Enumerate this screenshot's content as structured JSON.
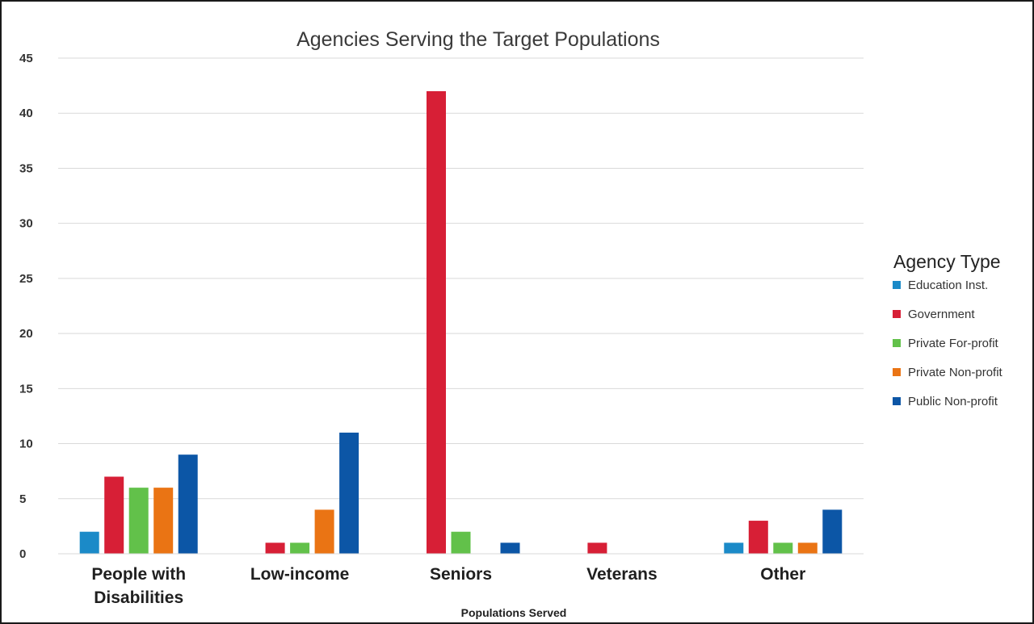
{
  "chart_data": {
    "type": "bar",
    "title": "Agencies Serving the Target Populations",
    "xlabel": "Populations Served",
    "ylabel": "",
    "ylim": [
      0,
      45
    ],
    "yticks": [
      0,
      5,
      10,
      15,
      20,
      25,
      30,
      35,
      40,
      45
    ],
    "grid": true,
    "legend_title": "Agency Type",
    "legend_position": "right",
    "categories": [
      "People with Disabilities",
      "Low-income",
      "Seniors",
      "Veterans",
      "Other"
    ],
    "series": [
      {
        "name": "Education Inst.",
        "color": "#1b8ac8",
        "values": [
          2,
          0,
          0,
          0,
          1
        ]
      },
      {
        "name": "Government",
        "color": "#d71f36",
        "values": [
          7,
          1,
          42,
          1,
          3
        ]
      },
      {
        "name": "Private For-profit",
        "color": "#62c14a",
        "values": [
          6,
          1,
          2,
          0,
          1
        ]
      },
      {
        "name": "Private Non-profit",
        "color": "#ea7414",
        "values": [
          6,
          4,
          0,
          0,
          1
        ]
      },
      {
        "name": "Public Non-profit",
        "color": "#0c56a6",
        "values": [
          9,
          11,
          1,
          0,
          4
        ]
      }
    ]
  }
}
